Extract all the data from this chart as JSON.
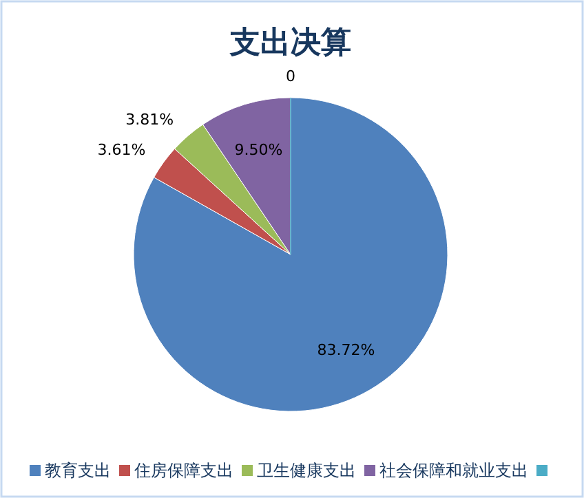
{
  "chart_data": {
    "type": "pie",
    "title": "支出决算",
    "categories": [
      "教育支出",
      "住房保障支出",
      "卫生健康支出",
      "社会保障和就业支出",
      null
    ],
    "values": [
      83.72,
      3.61,
      3.81,
      9.5,
      0
    ],
    "value_labels": [
      "83.72%",
      "3.61%",
      "3.81%",
      "9.50%",
      "0"
    ],
    "colors": [
      "#4f81bd",
      "#c0504d",
      "#9bbb59",
      "#8064a2",
      "#4bacc6"
    ],
    "legend": "bottom"
  }
}
